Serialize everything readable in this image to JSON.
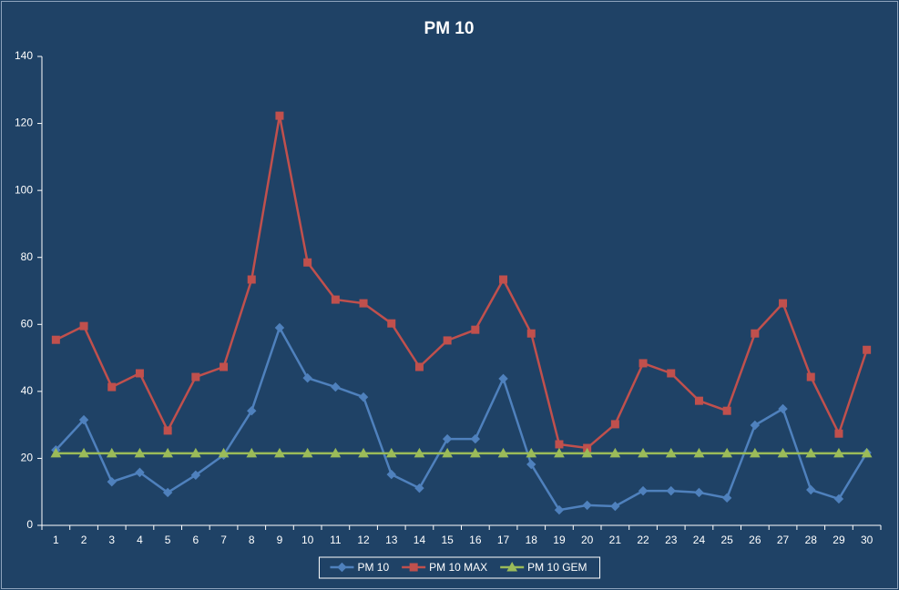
{
  "chart_data": {
    "type": "line",
    "title": "PM 10",
    "categories": [
      "1",
      "2",
      "3",
      "4",
      "5",
      "6",
      "7",
      "8",
      "9",
      "10",
      "11",
      "12",
      "13",
      "14",
      "15",
      "16",
      "17",
      "18",
      "19",
      "20",
      "21",
      "22",
      "23",
      "24",
      "25",
      "26",
      "27",
      "28",
      "29",
      "30"
    ],
    "series": [
      {
        "name": "PM 10",
        "color": "#4f81bd",
        "marker": "diamond",
        "values": [
          22.5,
          31.5,
          13,
          15.8,
          9.8,
          15,
          21,
          34.2,
          59,
          44,
          41.3,
          38.3,
          15.2,
          11.1,
          25.8,
          25.8,
          43.8,
          18.2,
          4.6,
          6,
          5.7,
          10.3,
          10.3,
          9.8,
          8.2,
          29.9,
          34.8,
          10.6,
          7.9,
          21.7
        ]
      },
      {
        "name": "PM 10 MAX",
        "color": "#c0504d",
        "marker": "square",
        "values": [
          55.4,
          59.5,
          41.3,
          45.4,
          28.3,
          44.3,
          47.3,
          73.4,
          122.3,
          78.5,
          67.4,
          66.3,
          60.3,
          47.3,
          55.2,
          58.4,
          73.4,
          57.3,
          24.2,
          23.1,
          30.2,
          48.4,
          45.4,
          37.2,
          34.2,
          57.3,
          66.3,
          44.3,
          27.4,
          52.4
        ]
      },
      {
        "name": "PM 10 GEM",
        "color": "#9bbb59",
        "marker": "triangle",
        "values": [
          21.5,
          21.5,
          21.5,
          21.5,
          21.5,
          21.5,
          21.5,
          21.5,
          21.5,
          21.5,
          21.5,
          21.5,
          21.5,
          21.5,
          21.5,
          21.5,
          21.5,
          21.5,
          21.5,
          21.5,
          21.5,
          21.5,
          21.5,
          21.5,
          21.5,
          21.5,
          21.5,
          21.5,
          21.5,
          21.5
        ]
      }
    ],
    "ylim": [
      0,
      140
    ],
    "yticks": [
      0,
      20,
      40,
      60,
      80,
      100,
      120,
      140
    ],
    "grid": false,
    "legend": "bottom"
  }
}
